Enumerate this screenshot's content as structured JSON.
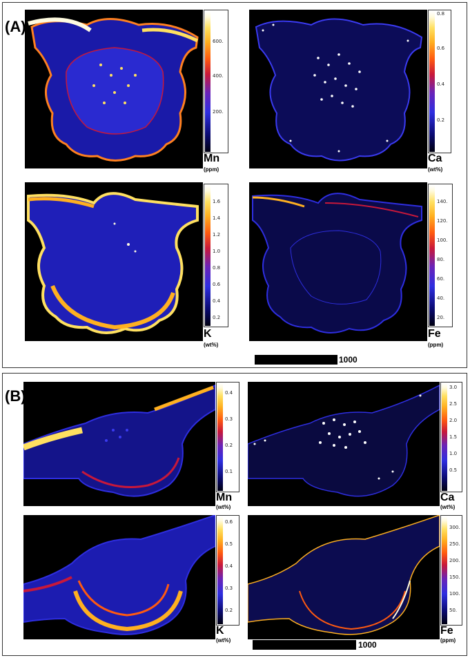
{
  "panel_a": {
    "label": "(A)",
    "scale_bar_label": "1000",
    "maps": [
      {
        "element": "Mn",
        "unit": "(ppm)",
        "ticks": [
          "600.",
          "400.",
          "200."
        ]
      },
      {
        "element": "Ca",
        "unit": "(wt%)",
        "ticks": [
          "0.8",
          "0.6",
          "0.4",
          "0.2"
        ]
      },
      {
        "element": "K",
        "unit": "(wt%)",
        "ticks": [
          "1.6",
          "1.4",
          "1.2",
          "1.0",
          "0.8",
          "0.6",
          "0.4",
          "0.2"
        ]
      },
      {
        "element": "Fe",
        "unit": "(ppm)",
        "ticks": [
          "140.",
          "120.",
          "100.",
          "80.",
          "60.",
          "40.",
          "20."
        ]
      }
    ]
  },
  "panel_b": {
    "label": "(B)",
    "scale_bar_label": "1000",
    "maps": [
      {
        "element": "Mn",
        "unit": "(wt%)",
        "ticks": [
          "0.4",
          "0.3",
          "0.2",
          "0.1"
        ]
      },
      {
        "element": "Ca",
        "unit": "(wt%)",
        "ticks": [
          "3.0",
          "2.5",
          "2.0",
          "1.5",
          "1.0",
          "0.5"
        ]
      },
      {
        "element": "K",
        "unit": "(wt%)",
        "ticks": [
          "0.6",
          "0.5",
          "0.4",
          "0.3",
          "0.2"
        ]
      },
      {
        "element": "Fe",
        "unit": "(ppm)",
        "ticks": [
          "300.",
          "250.",
          "200.",
          "150.",
          "100.",
          "50."
        ]
      }
    ]
  },
  "colormap": [
    "#000010",
    "#0a0a70",
    "#2e2ee0",
    "#6a23b8",
    "#c8183a",
    "#ff5a10",
    "#ffb020",
    "#ffe060",
    "#ffffff"
  ]
}
